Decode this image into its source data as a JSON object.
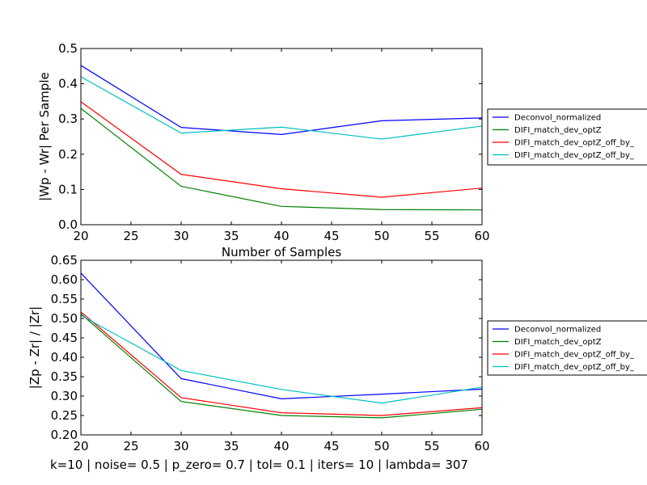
{
  "footer": "k=10 | noise= 0.5 | p_zero= 0.7 | tol= 0.1 | iters= 10 | lambda= 307",
  "chart_data": [
    {
      "type": "line",
      "title": "",
      "xlabel": "Number of Samples",
      "ylabel": "|Wp - Wr| Per Sample",
      "x": [
        20,
        30,
        40,
        50,
        60
      ],
      "xlim": [
        20,
        60
      ],
      "ylim": [
        0.0,
        0.5
      ],
      "xticks": [
        "20",
        "25",
        "30",
        "35",
        "40",
        "45",
        "50",
        "55",
        "60"
      ],
      "yticks": [
        "0.0",
        "0.1",
        "0.2",
        "0.3",
        "0.4",
        "0.5"
      ],
      "grid": false,
      "legend_position": "right, outside plot",
      "series": [
        {
          "name": "Deconvol_normalized",
          "color": "#0000ff",
          "values": [
            0.452,
            0.276,
            0.256,
            0.295,
            0.303
          ]
        },
        {
          "name": "DIFI_match_dev_optZ",
          "color": "#008000",
          "values": [
            0.33,
            0.109,
            0.052,
            0.043,
            0.042
          ]
        },
        {
          "name": "DIFI_match_dev_optZ_off_by_",
          "color": "#ff0000",
          "values": [
            0.349,
            0.143,
            0.102,
            0.078,
            0.104
          ]
        },
        {
          "name": "DIFI_match_dev_optZ_off_by_",
          "color": "#00bfbf",
          "values": [
            0.42,
            0.26,
            0.277,
            0.243,
            0.28
          ]
        }
      ]
    },
    {
      "type": "line",
      "title": "",
      "xlabel": "",
      "ylabel": "|Zp - Zr| / |Zr|",
      "x": [
        20,
        30,
        40,
        50,
        60
      ],
      "xlim": [
        20,
        60
      ],
      "ylim": [
        0.2,
        0.65
      ],
      "xticks": [
        "20",
        "25",
        "30",
        "35",
        "40",
        "45",
        "50",
        "55",
        "60"
      ],
      "yticks": [
        "0.20",
        "0.25",
        "0.30",
        "0.35",
        "0.40",
        "0.45",
        "0.50",
        "0.55",
        "0.60",
        "0.65"
      ],
      "grid": false,
      "legend_position": "right, outside plot",
      "series": [
        {
          "name": "Deconvol_normalized",
          "color": "#0000ff",
          "values": [
            0.617,
            0.345,
            0.293,
            0.305,
            0.318
          ]
        },
        {
          "name": "DIFI_match_dev_optZ",
          "color": "#008000",
          "values": [
            0.512,
            0.286,
            0.25,
            0.244,
            0.266
          ]
        },
        {
          "name": "DIFI_match_dev_optZ_off_by_",
          "color": "#ff0000",
          "values": [
            0.517,
            0.296,
            0.257,
            0.25,
            0.27
          ]
        },
        {
          "name": "DIFI_match_dev_optZ_off_by_",
          "color": "#00bfbf",
          "values": [
            0.508,
            0.366,
            0.317,
            0.282,
            0.323
          ]
        }
      ]
    }
  ]
}
